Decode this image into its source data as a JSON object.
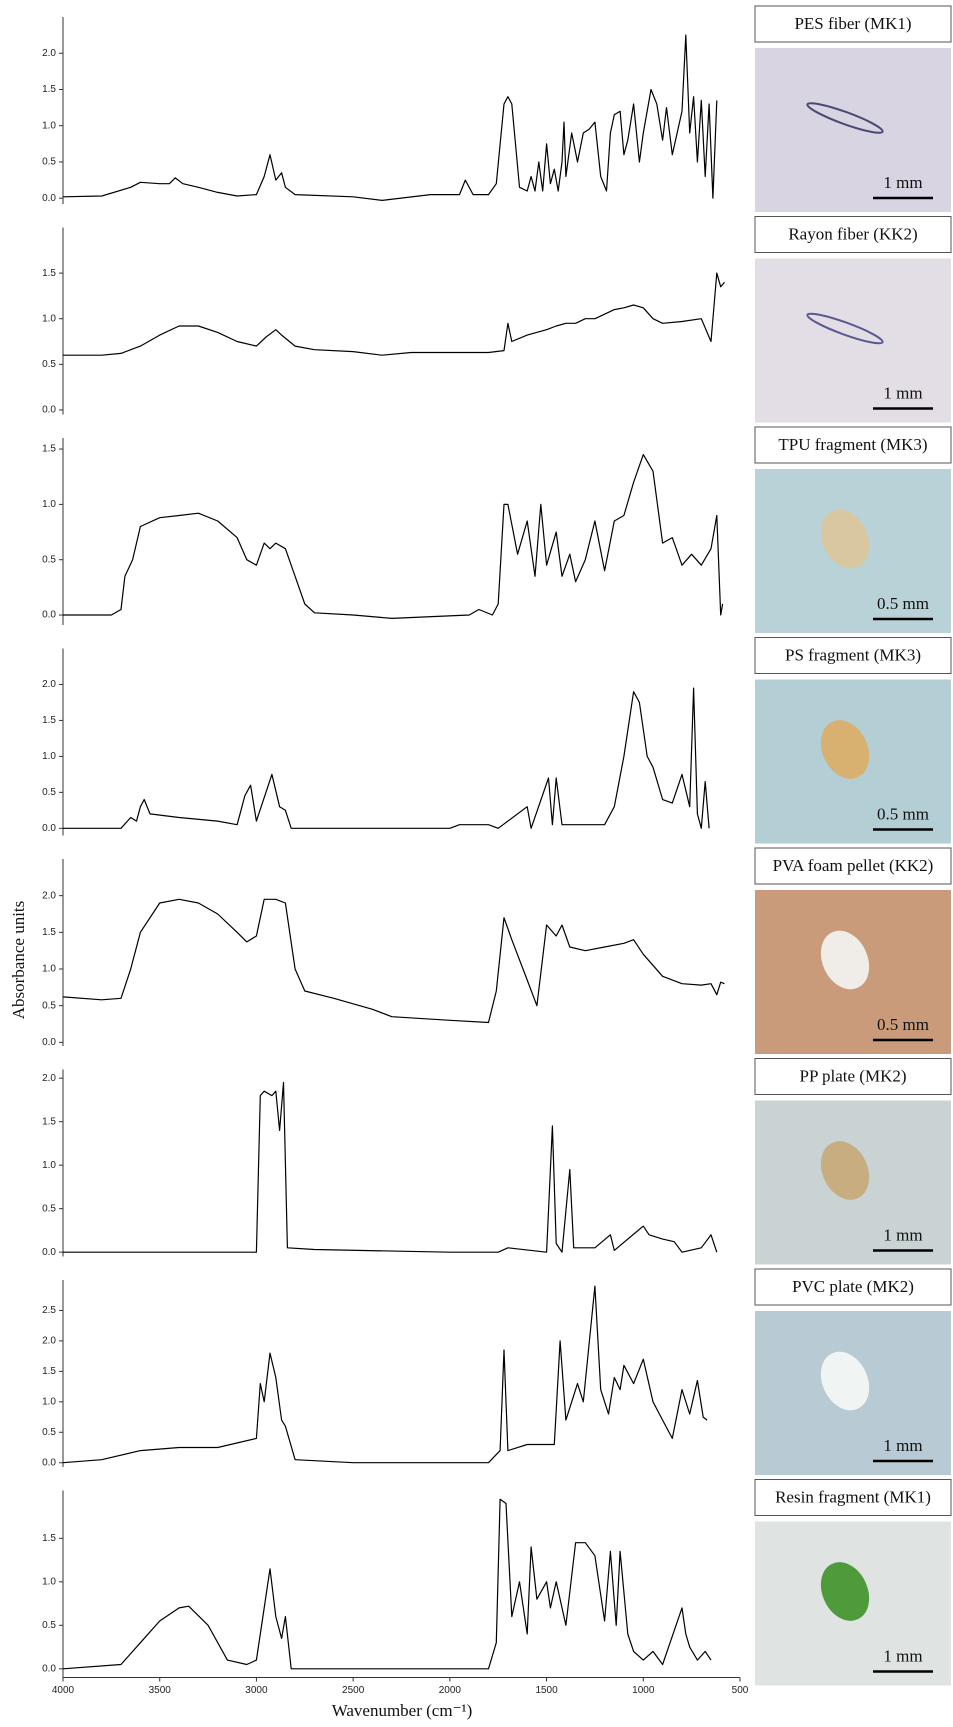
{
  "y_label": "Absorbance units",
  "x_label": "Wavenumber (cm⁻¹)",
  "chart_data": [
    {
      "type": "line",
      "title": "PES fiber (MK1)",
      "annotation": "1 mm",
      "color": "#000000",
      "xlim": [
        4000,
        500
      ],
      "ylim": [
        -0.08,
        2.5
      ],
      "yticks": [
        {
          "value": 0,
          "label": "0.0"
        },
        0.5,
        {
          "value": 1,
          "label": "1.0"
        },
        1.5,
        {
          "value": 2,
          "label": "2.0"
        }
      ],
      "x": [
        4000,
        3800,
        3650,
        3600,
        3500,
        3450,
        3420,
        3380,
        3300,
        3200,
        3100,
        3000,
        2960,
        2930,
        2900,
        2870,
        2850,
        2800,
        2500,
        2350,
        2100,
        1950,
        1920,
        1880,
        1800,
        1760,
        1720,
        1700,
        1680,
        1640,
        1600,
        1580,
        1560,
        1540,
        1520,
        1500,
        1480,
        1460,
        1440,
        1420,
        1410,
        1400,
        1370,
        1340,
        1310,
        1280,
        1250,
        1220,
        1190,
        1170,
        1150,
        1120,
        1100,
        1080,
        1050,
        1020,
        1000,
        960,
        930,
        900,
        880,
        850,
        800,
        780,
        760,
        740,
        720,
        700,
        680,
        660,
        640,
        620
      ],
      "values": [
        0.02,
        0.03,
        0.15,
        0.22,
        0.2,
        0.2,
        0.28,
        0.2,
        0.15,
        0.08,
        0.03,
        0.05,
        0.3,
        0.6,
        0.25,
        0.35,
        0.15,
        0.05,
        0.02,
        -0.03,
        0.05,
        0.05,
        0.25,
        0.05,
        0.05,
        0.2,
        1.3,
        1.4,
        1.3,
        0.15,
        0.1,
        0.3,
        0.1,
        0.5,
        0.1,
        0.75,
        0.2,
        0.4,
        0.1,
        0.5,
        1.05,
        0.3,
        0.9,
        0.5,
        0.9,
        0.95,
        1.05,
        0.3,
        0.1,
        0.9,
        1.15,
        1.2,
        0.6,
        0.8,
        1.3,
        0.5,
        0.9,
        1.5,
        1.3,
        0.8,
        1.25,
        0.6,
        1.2,
        2.25,
        0.9,
        1.4,
        0.5,
        1.35,
        0.3,
        1.3,
        0.0,
        1.35
      ]
    },
    {
      "type": "line",
      "title": "Rayon fiber (KK2)",
      "annotation": "1 mm",
      "color": "#000000",
      "xlim": [
        4000,
        500
      ],
      "ylim": [
        -0.05,
        2.0
      ],
      "yticks": [
        {
          "value": 0,
          "label": "0.0"
        },
        0.5,
        {
          "value": 1,
          "label": "1.0"
        },
        1.5
      ],
      "x": [
        4000,
        3800,
        3700,
        3600,
        3500,
        3400,
        3300,
        3200,
        3100,
        3000,
        2950,
        2900,
        2870,
        2800,
        2700,
        2500,
        2350,
        2200,
        1800,
        1720,
        1700,
        1680,
        1600,
        1500,
        1450,
        1400,
        1350,
        1300,
        1250,
        1200,
        1150,
        1100,
        1050,
        1000,
        950,
        900,
        800,
        700,
        650,
        620,
        600,
        580
      ],
      "values": [
        0.6,
        0.6,
        0.62,
        0.7,
        0.82,
        0.92,
        0.92,
        0.85,
        0.75,
        0.7,
        0.8,
        0.88,
        0.82,
        0.7,
        0.66,
        0.64,
        0.6,
        0.63,
        0.63,
        0.65,
        0.95,
        0.75,
        0.82,
        0.88,
        0.92,
        0.95,
        0.95,
        1.0,
        1.0,
        1.05,
        1.1,
        1.12,
        1.15,
        1.12,
        1.0,
        0.95,
        0.97,
        1.0,
        0.75,
        1.5,
        1.35,
        1.4
      ]
    },
    {
      "type": "line",
      "title": "TPU fragment (MK3)",
      "annotation": "0.5 mm",
      "color": "#000000",
      "xlim": [
        4000,
        500
      ],
      "ylim": [
        -0.09,
        1.6
      ],
      "yticks": [
        {
          "value": 0,
          "label": "0.0"
        },
        0.5,
        {
          "value": 1,
          "label": "1.0"
        },
        1.5
      ],
      "x": [
        4000,
        3750,
        3700,
        3680,
        3640,
        3600,
        3500,
        3400,
        3300,
        3200,
        3100,
        3050,
        3000,
        2960,
        2930,
        2900,
        2850,
        2800,
        2750,
        2700,
        2500,
        2300,
        1900,
        1850,
        1780,
        1750,
        1720,
        1700,
        1650,
        1600,
        1560,
        1530,
        1500,
        1450,
        1420,
        1380,
        1350,
        1300,
        1250,
        1200,
        1150,
        1100,
        1050,
        1000,
        950,
        900,
        850,
        800,
        750,
        700,
        650,
        620,
        600,
        590
      ],
      "values": [
        0.0,
        0.0,
        0.05,
        0.35,
        0.5,
        0.8,
        0.88,
        0.9,
        0.92,
        0.85,
        0.7,
        0.5,
        0.45,
        0.65,
        0.6,
        0.65,
        0.6,
        0.35,
        0.1,
        0.02,
        0.0,
        -0.03,
        0.0,
        0.05,
        0.0,
        0.1,
        1.0,
        1.0,
        0.55,
        0.85,
        0.35,
        1.0,
        0.45,
        0.75,
        0.35,
        0.55,
        0.3,
        0.5,
        0.85,
        0.4,
        0.85,
        0.9,
        1.2,
        1.45,
        1.3,
        0.65,
        0.7,
        0.45,
        0.55,
        0.45,
        0.6,
        0.9,
        0.0,
        0.1
      ]
    },
    {
      "type": "line",
      "title": "PS fragment (MK3)",
      "annotation": "0.5 mm",
      "color": "#000000",
      "xlim": [
        4000,
        500
      ],
      "ylim": [
        -0.1,
        2.5
      ],
      "yticks": [
        {
          "value": 0,
          "label": "0.0"
        },
        0.5,
        {
          "value": 1,
          "label": "1.0"
        },
        1.5,
        {
          "value": 2,
          "label": "2.0"
        }
      ],
      "x": [
        4000,
        3700,
        3650,
        3620,
        3600,
        3580,
        3550,
        3400,
        3200,
        3100,
        3080,
        3060,
        3030,
        3000,
        2920,
        2880,
        2850,
        2820,
        2500,
        2000,
        1950,
        1800,
        1750,
        1600,
        1580,
        1490,
        1470,
        1450,
        1420,
        1380,
        1200,
        1150,
        1100,
        1050,
        1020,
        980,
        950,
        900,
        850,
        800,
        760,
        740,
        720,
        700,
        680,
        660
      ],
      "values": [
        0.0,
        0.0,
        0.15,
        0.1,
        0.3,
        0.4,
        0.2,
        0.15,
        0.1,
        0.05,
        0.25,
        0.45,
        0.6,
        0.1,
        0.75,
        0.3,
        0.25,
        0.0,
        0.0,
        0.0,
        0.05,
        0.05,
        0.0,
        0.3,
        0.0,
        0.7,
        0.05,
        0.7,
        0.05,
        0.05,
        0.05,
        0.3,
        1.0,
        1.9,
        1.75,
        1.0,
        0.85,
        0.4,
        0.35,
        0.75,
        0.3,
        1.95,
        0.2,
        0.0,
        0.65,
        0.0
      ]
    },
    {
      "type": "line",
      "title": "PVA foam pellet (KK2)",
      "annotation": "0.5 mm",
      "color": "#000000",
      "xlim": [
        4000,
        500
      ],
      "ylim": [
        -0.05,
        2.5
      ],
      "yticks": [
        {
          "value": 0,
          "label": "0.0"
        },
        0.5,
        {
          "value": 1,
          "label": "1.0"
        },
        1.5,
        {
          "value": 2,
          "label": "2.0"
        }
      ],
      "x": [
        4000,
        3800,
        3700,
        3650,
        3600,
        3500,
        3400,
        3300,
        3200,
        3100,
        3050,
        3000,
        2960,
        2900,
        2850,
        2800,
        2750,
        2600,
        2400,
        2300,
        2000,
        1800,
        1760,
        1720,
        1680,
        1600,
        1550,
        1500,
        1450,
        1420,
        1380,
        1300,
        1200,
        1100,
        1050,
        1000,
        900,
        800,
        700,
        650,
        620,
        600,
        580
      ],
      "values": [
        0.62,
        0.58,
        0.6,
        1.0,
        1.5,
        1.9,
        1.95,
        1.9,
        1.75,
        1.5,
        1.37,
        1.45,
        1.95,
        1.95,
        1.9,
        1.0,
        0.7,
        0.6,
        0.45,
        0.35,
        0.3,
        0.27,
        0.7,
        1.7,
        1.4,
        0.85,
        0.5,
        1.6,
        1.45,
        1.6,
        1.3,
        1.25,
        1.3,
        1.35,
        1.4,
        1.2,
        0.9,
        0.8,
        0.78,
        0.8,
        0.65,
        0.82,
        0.8
      ]
    },
    {
      "type": "line",
      "title": "PP plate (MK2)",
      "annotation": "1 mm",
      "color": "#000000",
      "xlim": [
        4000,
        500
      ],
      "ylim": [
        -0.05,
        2.1
      ],
      "yticks": [
        {
          "value": 0,
          "label": "0.0"
        },
        0.5,
        {
          "value": 1,
          "label": "1.0"
        },
        1.5,
        {
          "value": 2,
          "label": "2.0"
        }
      ],
      "x": [
        4000,
        3000,
        2980,
        2960,
        2920,
        2900,
        2880,
        2860,
        2840,
        2700,
        2000,
        1750,
        1700,
        1500,
        1470,
        1450,
        1420,
        1380,
        1360,
        1250,
        1170,
        1150,
        1000,
        970,
        900,
        840,
        800,
        700,
        650,
        620
      ],
      "values": [
        0.0,
        0.0,
        1.8,
        1.85,
        1.8,
        1.85,
        1.4,
        1.95,
        0.05,
        0.03,
        0.0,
        0.0,
        0.05,
        0.0,
        1.45,
        0.1,
        0.0,
        0.95,
        0.05,
        0.05,
        0.2,
        0.02,
        0.3,
        0.2,
        0.15,
        0.12,
        0.0,
        0.05,
        0.2,
        0.0
      ]
    },
    {
      "type": "line",
      "title": "PVC plate (MK2)",
      "annotation": "1 mm",
      "color": "#000000",
      "xlim": [
        4000,
        500
      ],
      "ylim": [
        -0.07,
        3.0
      ],
      "yticks": [
        {
          "value": 0,
          "label": "0.0"
        },
        0.5,
        {
          "value": 1,
          "label": "1.0"
        },
        1.5,
        {
          "value": 2,
          "label": "2.0"
        },
        2.5
      ],
      "x": [
        4000,
        3800,
        3600,
        3400,
        3200,
        3000,
        2980,
        2960,
        2930,
        2900,
        2870,
        2850,
        2800,
        2500,
        1800,
        1740,
        1720,
        1700,
        1600,
        1500,
        1460,
        1430,
        1400,
        1340,
        1310,
        1250,
        1220,
        1180,
        1150,
        1120,
        1100,
        1050,
        1000,
        950,
        900,
        850,
        800,
        760,
        720,
        690,
        670
      ],
      "values": [
        0.0,
        0.05,
        0.2,
        0.25,
        0.25,
        0.4,
        1.3,
        1.0,
        1.8,
        1.4,
        0.7,
        0.6,
        0.05,
        0.0,
        0.0,
        0.2,
        1.85,
        0.2,
        0.3,
        0.3,
        0.3,
        2.0,
        0.7,
        1.3,
        1.0,
        2.9,
        1.2,
        0.8,
        1.4,
        1.2,
        1.6,
        1.3,
        1.7,
        1.0,
        0.7,
        0.4,
        1.2,
        0.8,
        1.35,
        0.75,
        0.7
      ]
    },
    {
      "type": "line",
      "title": "Resin fragment (MK1)",
      "annotation": "1 mm",
      "color": "#000000",
      "xlim": [
        4000,
        500
      ],
      "ylim": [
        -0.1,
        2.05
      ],
      "yticks": [
        {
          "value": 0,
          "label": "0.0"
        },
        0.5,
        {
          "value": 1,
          "label": "1.0"
        },
        1.5
      ],
      "xticks": [
        4000,
        3500,
        3000,
        2500,
        2000,
        1500,
        1000,
        500
      ],
      "x": [
        4000,
        3700,
        3600,
        3500,
        3400,
        3350,
        3250,
        3150,
        3050,
        3000,
        2960,
        2930,
        2900,
        2870,
        2850,
        2820,
        2000,
        1800,
        1760,
        1740,
        1710,
        1680,
        1640,
        1600,
        1580,
        1550,
        1500,
        1480,
        1450,
        1400,
        1350,
        1300,
        1250,
        1200,
        1170,
        1140,
        1120,
        1080,
        1050,
        1000,
        950,
        900,
        800,
        780,
        760,
        720,
        680,
        650
      ],
      "values": [
        0.0,
        0.05,
        0.3,
        0.55,
        0.7,
        0.72,
        0.5,
        0.1,
        0.05,
        0.1,
        0.7,
        1.15,
        0.6,
        0.35,
        0.6,
        0.0,
        0.0,
        0.0,
        0.3,
        1.95,
        1.9,
        0.6,
        1.0,
        0.4,
        1.4,
        0.8,
        1.0,
        0.7,
        1.0,
        0.5,
        1.45,
        1.45,
        1.3,
        0.55,
        1.35,
        0.5,
        1.35,
        0.4,
        0.2,
        0.1,
        0.2,
        0.05,
        0.7,
        0.4,
        0.25,
        0.1,
        0.2,
        0.1
      ]
    }
  ]
}
